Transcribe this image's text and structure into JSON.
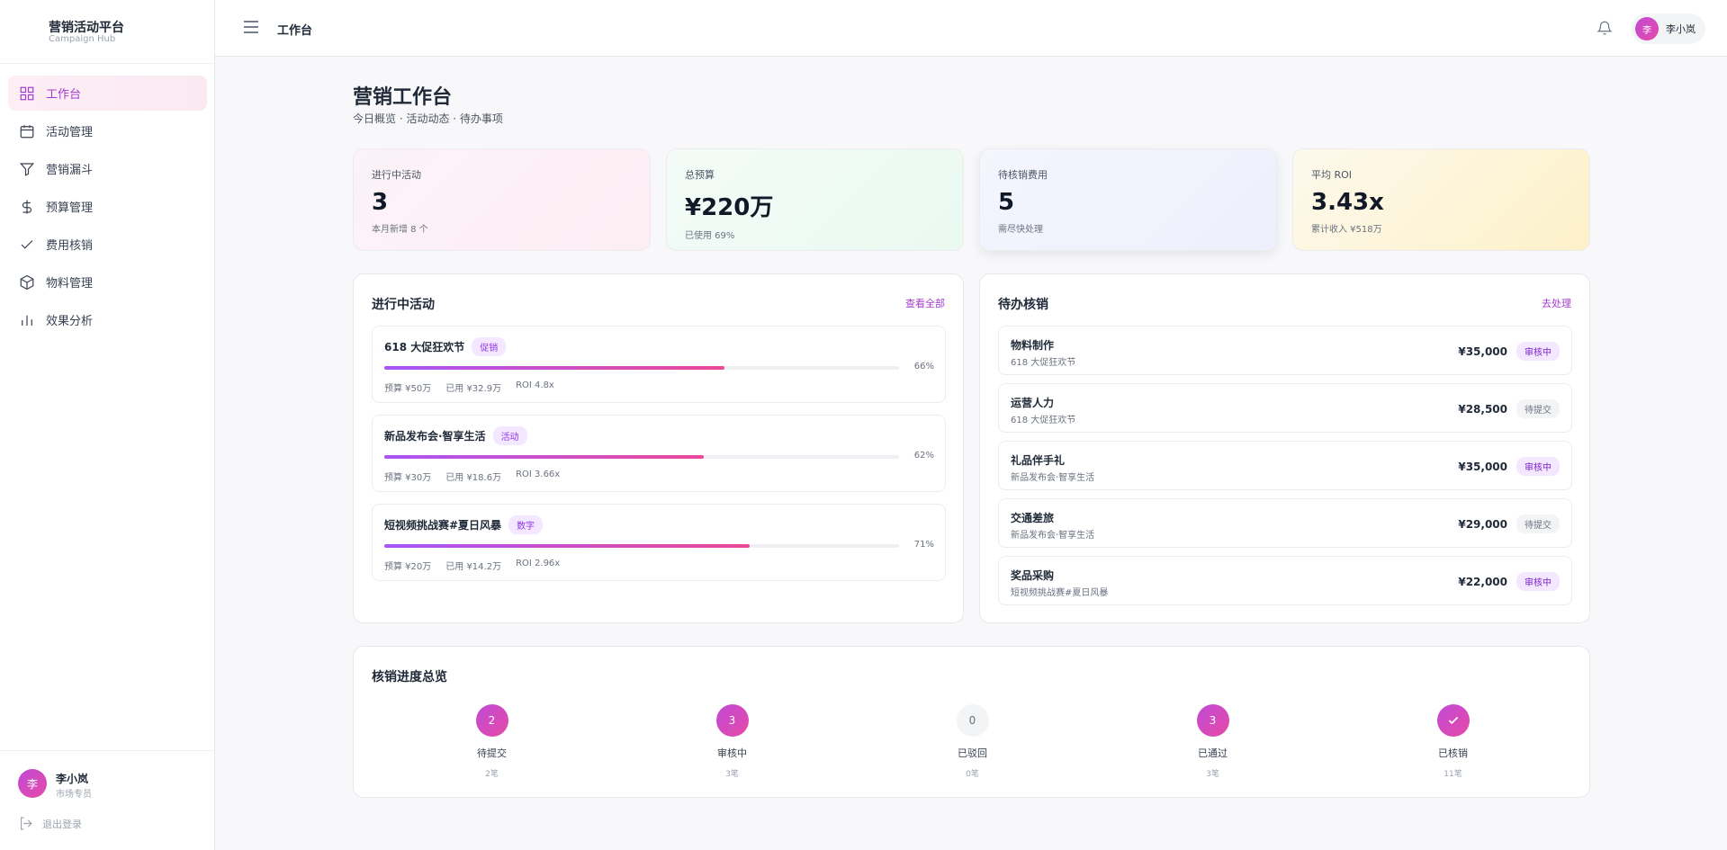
{
  "sidebar": {
    "brand": "营销活动平台",
    "brand_sub": "Campaign Hub",
    "nav": [
      "工作台",
      "活动管理",
      "营销漏斗",
      "预算管理",
      "费用核销",
      "物料管理",
      "效果分析"
    ],
    "user": {
      "avatar": "李",
      "name": "李小岚",
      "role": "市场专员"
    },
    "logout": "退出登录"
  },
  "header": {
    "title": "工作台",
    "user_avatar": "李",
    "user_name": "李小岚"
  },
  "page": {
    "title": "营销工作台",
    "subtitle": "今日概览 · 活动动态 · 待办事项"
  },
  "stats": [
    {
      "label": "进行中活动",
      "value": "3",
      "note": "本月新增 8 个"
    },
    {
      "label": "总预算",
      "value": "¥220万",
      "note": "已使用 69%"
    },
    {
      "label": "待核销费用",
      "value": "5",
      "note": "需尽快处理"
    },
    {
      "label": "平均 ROI",
      "value": "3.43x",
      "note": "累计收入 ¥518万"
    }
  ],
  "active": {
    "title": "进行中活动",
    "link": "查看全部",
    "items": [
      {
        "name": "618 大促狂欢节",
        "tag": "促销",
        "progress": 66,
        "progress_label": "66%",
        "budget": "预算 ¥50万",
        "used": "已用 ¥32.9万",
        "roi": "ROI 4.8x"
      },
      {
        "name": "新品发布会·智享生活",
        "tag": "活动",
        "progress": 62,
        "progress_label": "62%",
        "budget": "预算 ¥30万",
        "used": "已用 ¥18.6万",
        "roi": "ROI 3.66x"
      },
      {
        "name": "短视频挑战赛#夏日风暴",
        "tag": "数字",
        "progress": 71,
        "progress_label": "71%",
        "budget": "预算 ¥20万",
        "used": "已用 ¥14.2万",
        "roi": "ROI 2.96x"
      }
    ]
  },
  "pending": {
    "title": "待办核销",
    "link": "去处理",
    "items": [
      {
        "name": "物料制作",
        "sub": "618 大促狂欢节",
        "amount": "¥35,000",
        "status": "审核中"
      },
      {
        "name": "运营人力",
        "sub": "618 大促狂欢节",
        "amount": "¥28,500",
        "status": "待提交"
      },
      {
        "name": "礼品伴手礼",
        "sub": "新品发布会·智享生活",
        "amount": "¥35,000",
        "status": "审核中"
      },
      {
        "name": "交通差旅",
        "sub": "新品发布会·智享生活",
        "amount": "¥29,000",
        "status": "待提交"
      },
      {
        "name": "奖品采购",
        "sub": "短视频挑战赛#夏日风暴",
        "amount": "¥22,000",
        "status": "审核中"
      }
    ]
  },
  "progress": {
    "title": "核销进度总览",
    "steps": [
      {
        "count": "2",
        "label": "待提交",
        "note": "2笔"
      },
      {
        "count": "3",
        "label": "审核中",
        "note": "3笔"
      },
      {
        "count": "0",
        "label": "已驳回",
        "note": "0笔"
      },
      {
        "count": "3",
        "label": "已通过",
        "note": "3笔"
      },
      {
        "label": "已核销",
        "note": "11笔"
      }
    ]
  }
}
